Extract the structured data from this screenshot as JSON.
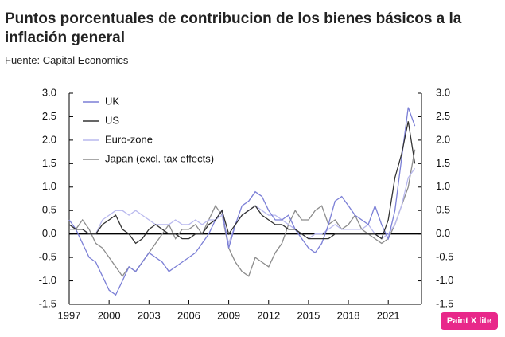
{
  "chart_data": {
    "type": "line",
    "title": "Puntos porcentuales de contribucion de los bienes básicos a la inflación general",
    "subtitle": "Fuente: Capital Economics",
    "watermark": "Paint X lite",
    "x": [
      1997,
      1997.5,
      1998,
      1998.5,
      1999,
      1999.5,
      2000,
      2000.5,
      2001,
      2001.5,
      2002,
      2002.5,
      2003,
      2003.5,
      2004,
      2004.5,
      2005,
      2005.5,
      2006,
      2006.5,
      2007,
      2007.5,
      2008,
      2008.5,
      2009,
      2009.5,
      2010,
      2010.5,
      2011,
      2011.5,
      2012,
      2012.5,
      2013,
      2013.5,
      2014,
      2014.5,
      2015,
      2015.5,
      2016,
      2016.5,
      2017,
      2017.5,
      2018,
      2018.5,
      2019,
      2019.5,
      2020,
      2020.5,
      2021,
      2021.5,
      2022,
      2022.5,
      2023
    ],
    "series": [
      {
        "name": "UK",
        "color": "#7b7fd6",
        "values": [
          0.3,
          0.1,
          -0.2,
          -0.5,
          -0.6,
          -0.9,
          -1.2,
          -1.3,
          -1.0,
          -0.7,
          -0.8,
          -0.6,
          -0.4,
          -0.5,
          -0.6,
          -0.8,
          -0.7,
          -0.6,
          -0.5,
          -0.4,
          -0.2,
          0.0,
          0.3,
          0.5,
          -0.3,
          0.2,
          0.6,
          0.7,
          0.9,
          0.8,
          0.5,
          0.3,
          0.3,
          0.4,
          0.1,
          -0.1,
          -0.3,
          -0.4,
          -0.2,
          0.2,
          0.7,
          0.8,
          0.6,
          0.4,
          0.3,
          0.2,
          0.6,
          0.2,
          -0.1,
          0.5,
          1.6,
          2.7,
          2.3
        ]
      },
      {
        "name": "US",
        "color": "#333333",
        "values": [
          0.2,
          0.1,
          0.1,
          0.0,
          0.0,
          0.2,
          0.3,
          0.4,
          0.1,
          0.0,
          -0.2,
          -0.1,
          0.1,
          0.2,
          0.1,
          0.0,
          0.0,
          -0.1,
          -0.1,
          0.0,
          0.0,
          0.2,
          0.3,
          0.5,
          0.0,
          0.2,
          0.4,
          0.5,
          0.6,
          0.4,
          0.3,
          0.2,
          0.2,
          0.1,
          0.1,
          0.0,
          -0.1,
          -0.1,
          -0.1,
          -0.1,
          0.0,
          0.0,
          0.0,
          0.0,
          0.0,
          0.0,
          0.0,
          -0.1,
          0.3,
          1.2,
          1.7,
          2.4,
          1.5
        ]
      },
      {
        "name": "Euro-zone",
        "color": "#b9b9ee",
        "values": [
          0.2,
          0.1,
          0.1,
          0.0,
          0.0,
          0.3,
          0.4,
          0.5,
          0.5,
          0.4,
          0.5,
          0.4,
          0.3,
          0.2,
          0.2,
          0.2,
          0.3,
          0.2,
          0.2,
          0.3,
          0.2,
          0.3,
          0.3,
          0.4,
          -0.2,
          0.2,
          0.4,
          0.5,
          0.6,
          0.5,
          0.4,
          0.4,
          0.3,
          0.2,
          0.1,
          0.0,
          -0.1,
          0.0,
          0.0,
          0.1,
          0.2,
          0.1,
          0.1,
          0.1,
          0.1,
          0.2,
          0.0,
          -0.1,
          0.0,
          0.2,
          0.6,
          1.2,
          1.4
        ]
      },
      {
        "name": "Japan (excl. tax effects)",
        "color": "#8c8c8c",
        "values": [
          0.1,
          0.1,
          0.3,
          0.1,
          -0.2,
          -0.3,
          -0.5,
          -0.7,
          -0.9,
          -0.7,
          -0.8,
          -0.6,
          -0.4,
          -0.2,
          0.0,
          0.2,
          -0.1,
          0.1,
          0.1,
          0.2,
          0.0,
          0.3,
          0.6,
          0.4,
          -0.3,
          -0.6,
          -0.8,
          -0.9,
          -0.5,
          -0.6,
          -0.7,
          -0.4,
          -0.2,
          0.2,
          0.5,
          0.3,
          0.3,
          0.5,
          0.6,
          0.2,
          0.3,
          0.1,
          0.2,
          0.4,
          0.1,
          0.0,
          -0.1,
          -0.2,
          -0.1,
          0.2,
          0.6,
          1.0,
          1.8
        ]
      }
    ],
    "xlim": [
      1997,
      2023.5
    ],
    "xticks": [
      1997,
      2000,
      2003,
      2006,
      2009,
      2012,
      2015,
      2018,
      2021
    ],
    "ylim": [
      -1.5,
      3.0
    ],
    "yticks": [
      {
        "value": 3.0,
        "label": "3.0"
      },
      2.5,
      {
        "value": 2.0,
        "label": "2.0"
      },
      1.5,
      {
        "value": 1.0,
        "label": "1.0"
      },
      0.5,
      {
        "value": 0,
        "label": "0.0"
      },
      -0.5,
      {
        "value": -1.0,
        "label": "-1.0"
      },
      -1.5
    ],
    "y2lim": [
      -1.5,
      3.0
    ],
    "y2ticks": [
      {
        "value": 3.0,
        "label": "3.0"
      },
      2.5,
      {
        "value": 2.0,
        "label": "2.0"
      },
      1.5,
      {
        "value": 1.0,
        "label": "1.0"
      },
      0.5,
      {
        "value": 0,
        "label": "0.0"
      },
      -0.5,
      {
        "value": -1.0,
        "label": "-1.0"
      },
      -1.5
    ],
    "legend": "upper-left"
  }
}
